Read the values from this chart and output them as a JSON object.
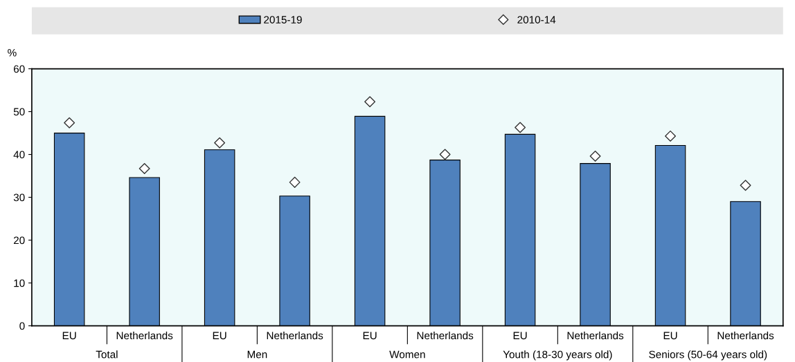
{
  "chart_data": {
    "type": "bar",
    "ylabel": "%",
    "categories": [
      "EU",
      "Netherlands",
      "EU",
      "Netherlands",
      "EU",
      "Netherlands",
      "EU",
      "Netherlands",
      "EU",
      "Netherlands"
    ],
    "series": [
      {
        "name": "2015-19",
        "color": "#4f81bd",
        "values": [
          45.0,
          34.6,
          41.1,
          30.3,
          48.9,
          38.7,
          44.7,
          37.9,
          42.1,
          29.0
        ]
      },
      {
        "name": "2010-14",
        "type": "scatter",
        "color": "#ffffff",
        "marker": "diamond",
        "values": [
          47.4,
          36.7,
          42.7,
          33.5,
          52.3,
          40.0,
          46.3,
          39.6,
          44.3,
          32.8
        ]
      }
    ],
    "annotations": [
      "Total",
      "Men",
      "Women",
      "Youth (18-30 years old)",
      "Seniors (50-64 years old)"
    ],
    "ylim": [
      0,
      60
    ],
    "yticks": [
      0,
      10,
      20,
      30,
      40,
      50,
      60
    ],
    "grid": false,
    "legend": "top"
  }
}
